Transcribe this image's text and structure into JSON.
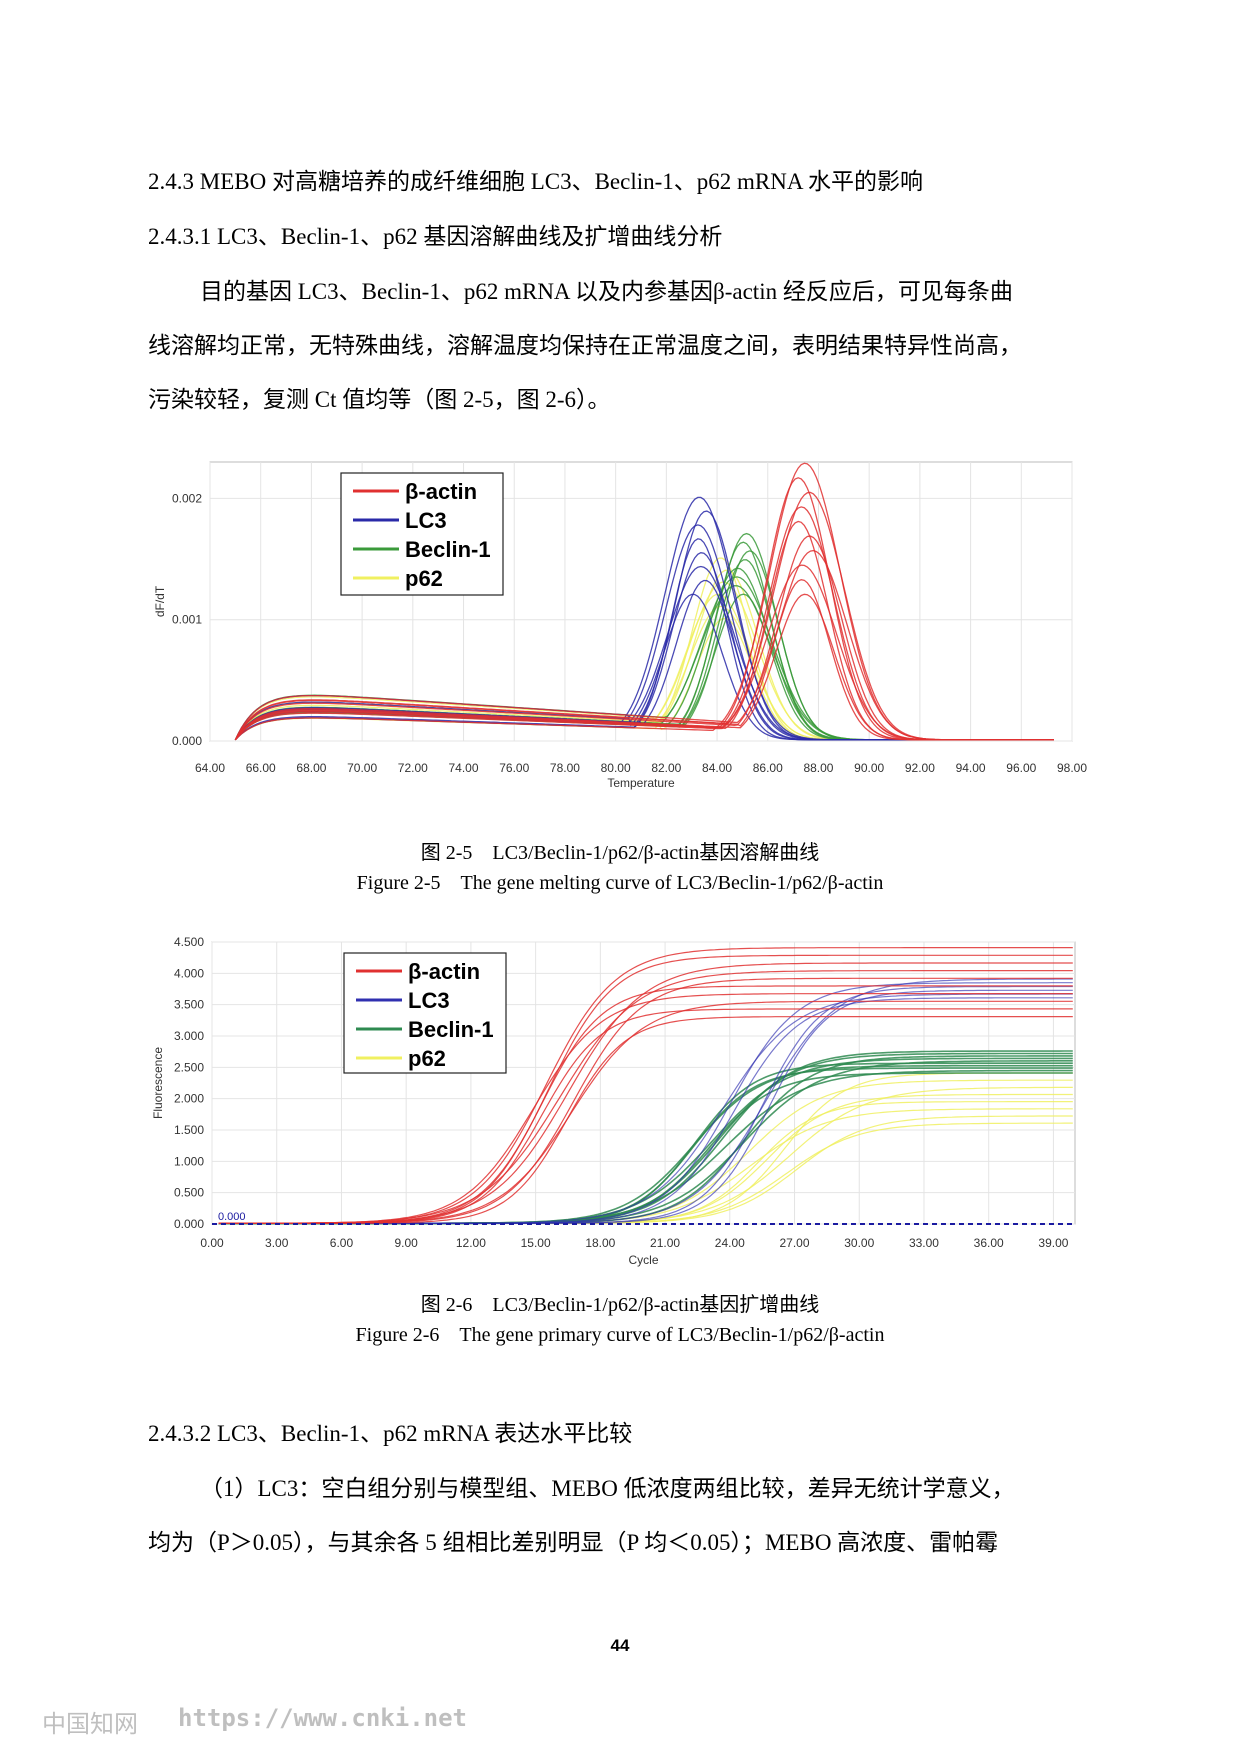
{
  "text": {
    "h1": "2.4.3 MEBO 对高糖培养的成纤维细胞 LC3、Beclin-1、p62 mRNA 水平的影响",
    "h2": "2.4.3.1 LC3、Beclin-1、p62 基因溶解曲线及扩增曲线分析",
    "p1": "目的基因 LC3、Beclin-1、p62 mRNA 以及内参基因β-actin 经反应后，可见每条曲",
    "p2": "线溶解均正常，无特殊曲线，溶解温度均保持在正常温度之间，表明结果特异性尚高，",
    "p3": "污染较轻，复测 Ct 值均等（图 2-5，图 2-6）。",
    "fig1_cn": "图 2-5　LC3/Beclin-1/p62/β-actin基因溶解曲线",
    "fig1_en": "Figure 2-5　The gene melting curve of LC3/Beclin-1/p62/β-actin",
    "fig2_cn": "图 2-6　LC3/Beclin-1/p62/β-actin基因扩增曲线",
    "fig2_en": "Figure 2-6　The gene primary curve of LC3/Beclin-1/p62/β-actin",
    "h3": "2.4.3.2 LC3、Beclin-1、p62 mRNA 表达水平比较",
    "p4": "（1）LC3：空白组分别与模型组、MEBO 低浓度两组比较，差异无统计学意义，",
    "p5": "均为（P＞0.05），与其余各 5 组相比差别明显（P 均＜0.05）；MEBO 高浓度、雷帕霉",
    "page_number": "44",
    "watermark_cn": "中国知网",
    "watermark_url": "https://www.cnki.net"
  },
  "chart_data": [
    {
      "type": "line",
      "xlabel": "Temperature",
      "ylabel": "dF/dT",
      "xlim": [
        64,
        98
      ],
      "ylim": [
        0,
        0.0023
      ],
      "x_ticks": [
        "64.00",
        "66.00",
        "68.00",
        "70.00",
        "72.00",
        "74.00",
        "76.00",
        "78.00",
        "80.00",
        "82.00",
        "84.00",
        "86.00",
        "88.00",
        "90.00",
        "92.00",
        "94.00",
        "96.00",
        "98.00"
      ],
      "y_ticks": [
        "0.000",
        "0.001",
        "0.002"
      ],
      "y_tick_values": [
        0,
        0.001,
        0.002
      ],
      "grid": true,
      "legend_position": "top-left",
      "series": [
        {
          "name": "β-actin",
          "color": "#e03030",
          "peak_x": 87.5,
          "peak_y_range": [
            0.0012,
            0.00228
          ],
          "replicates": 10
        },
        {
          "name": "LC3",
          "color": "#2a2aa8",
          "peak_x": 83.3,
          "peak_y_range": [
            0.0012,
            0.002
          ],
          "replicates": 8
        },
        {
          "name": "Beclin-1",
          "color": "#3a9a3a",
          "peak_x": 85.0,
          "peak_y_range": [
            0.0012,
            0.0017
          ],
          "replicates": 8
        },
        {
          "name": "p62",
          "color": "#f0f060",
          "peak_x": 84.3,
          "peak_y_range": [
            0.001,
            0.0015
          ],
          "replicates": 6
        }
      ]
    },
    {
      "type": "line",
      "xlabel": "Cycle",
      "ylabel": "Fluorescence",
      "xlim": [
        0,
        40
      ],
      "ylim": [
        0,
        4.5
      ],
      "x_ticks": [
        "0.00",
        "3.00",
        "6.00",
        "9.00",
        "12.00",
        "15.00",
        "18.00",
        "21.00",
        "24.00",
        "27.00",
        "30.00",
        "33.00",
        "36.00",
        "39.00"
      ],
      "y_ticks": [
        "0.000",
        "0.500",
        "1.000",
        "1.500",
        "2.000",
        "2.500",
        "3.000",
        "3.500",
        "4.000",
        "4.500"
      ],
      "y_tick_values": [
        0,
        0.5,
        1,
        1.5,
        2,
        2.5,
        3,
        3.5,
        4,
        4.5
      ],
      "threshold_label": "0.000",
      "threshold_value": 0,
      "grid": true,
      "legend_position": "top-left",
      "series": [
        {
          "name": "β-actin",
          "color": "#e03030",
          "midpoint_cycle": 16,
          "plateau_range": [
            3.3,
            4.4
          ],
          "replicates": 10
        },
        {
          "name": "LC3",
          "color": "#3030b0",
          "midpoint_cycle": 24.5,
          "plateau_range": [
            3.6,
            3.9
          ],
          "replicates": 6
        },
        {
          "name": "Beclin-1",
          "color": "#2e8a50",
          "midpoint_cycle": 23.5,
          "plateau_range": [
            2.4,
            2.75
          ],
          "replicates": 10
        },
        {
          "name": "p62",
          "color": "#f0f060",
          "midpoint_cycle": 26,
          "plateau_range": [
            1.6,
            2.4
          ],
          "replicates": 8
        }
      ]
    }
  ]
}
